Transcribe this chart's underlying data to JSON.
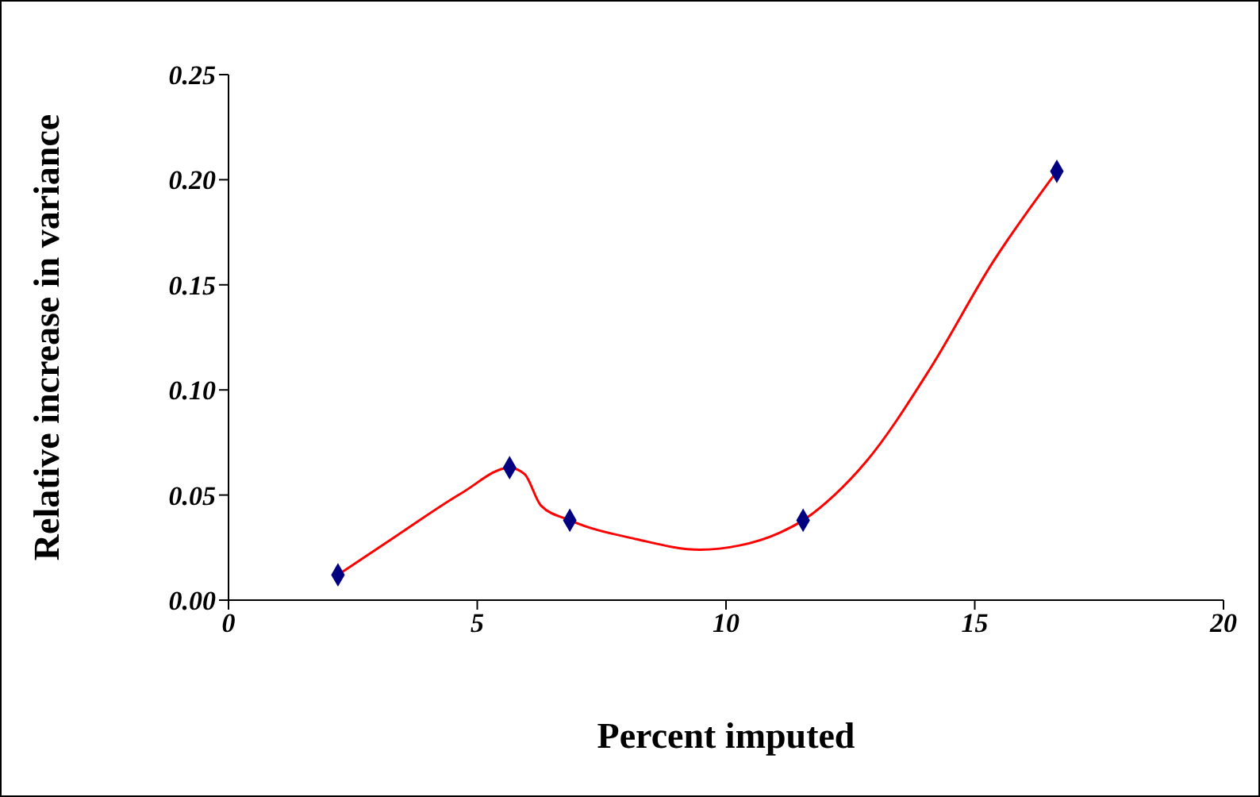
{
  "chart_data": {
    "type": "scatter",
    "xlabel": "Percent imputed",
    "ylabel": "Relative increase in variance",
    "xlim": [
      0,
      20
    ],
    "xticks": [
      0,
      5,
      10,
      15,
      20
    ],
    "ylim": [
      0,
      0.25
    ],
    "yticks": [
      {
        "value": 0,
        "label": "0.00"
      },
      {
        "value": 0.05,
        "label": "0.05"
      },
      {
        "value": 0.1,
        "label": "0.10"
      },
      {
        "value": 0.15,
        "label": "0.15"
      },
      {
        "value": 0.2,
        "label": "0.20"
      },
      {
        "value": 0.25,
        "label": "0.25"
      }
    ],
    "grid": false,
    "legend": false,
    "series": [
      {
        "type": "line",
        "color": "#ff0000",
        "marker": "none",
        "x": [
          2.2,
          3.4,
          4.69,
          5.65,
          5.95,
          6.28,
          6.86,
          8.2,
          9.47,
          10.27,
          11.07,
          11.55,
          12.18,
          12.82,
          14.1,
          15.37,
          16.65
        ],
        "values": [
          0.012,
          0.031,
          0.051,
          0.063,
          0.06,
          0.045,
          0.038,
          0.029,
          0.024,
          0.026,
          0.032,
          0.038,
          0.05,
          0.066,
          0.11,
          0.161,
          0.204
        ]
      },
      {
        "color": "#000080",
        "marker": "diamond",
        "x": [
          2.2,
          5.65,
          6.86,
          11.55,
          16.65
        ],
        "values": [
          0.012,
          0.063,
          0.038,
          0.038,
          0.204
        ]
      }
    ]
  }
}
